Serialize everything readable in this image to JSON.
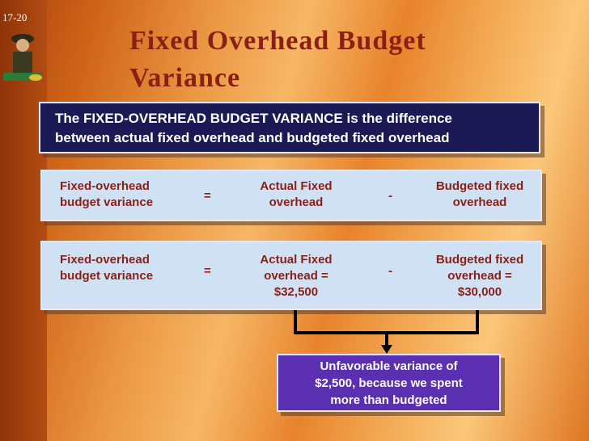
{
  "slide_number": "17-20",
  "title": [
    "Fixed Overhead Budget",
    "Variance"
  ],
  "definition": [
    "The FIXED-OVERHEAD BUDGET VARIANCE is the difference",
    "between actual fixed overhead and budgeted fixed overhead"
  ],
  "formula": {
    "left": [
      "Fixed-overhead",
      "budget variance"
    ],
    "equals": "=",
    "middle": [
      "Actual Fixed",
      "overhead"
    ],
    "minus": "-",
    "right": [
      "Budgeted fixed",
      "overhead"
    ]
  },
  "calculation": {
    "left": [
      "Fixed-overhead",
      "budget variance"
    ],
    "equals": "=",
    "middle": [
      "Actual Fixed",
      "overhead =",
      "$32,500"
    ],
    "minus": "-",
    "right": [
      "Budgeted fixed",
      "overhead =",
      "$30,000"
    ]
  },
  "result": [
    "Unfavorable variance of",
    "$2,500, because we spent",
    "more than budgeted"
  ]
}
